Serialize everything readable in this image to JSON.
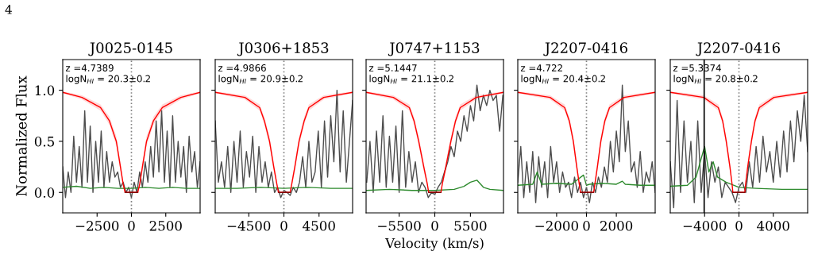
{
  "chart_data": [
    {
      "type": "line",
      "title": "J0025-0145",
      "ylabel": "Normalized Flux",
      "annotations": [
        "z =4.7389",
        "logN$_{HI}$ = 20.3±0.2",
        "4"
      ],
      "xlim": [
        -5000,
        5000
      ],
      "xticks": [
        {
          "value": -2500,
          "label": "−2500"
        },
        0,
        2500
      ],
      "ylim": [
        -0.2,
        1.3
      ],
      "yticks": [
        {
          "value": 0,
          "label": "0.0"
        },
        0.5,
        {
          "value": 1,
          "label": "1.0"
        }
      ],
      "ref_lines": [
        {
          "axis": "x",
          "value": 0,
          "color": "#808080",
          "line_style": "dotted"
        }
      ],
      "series": [
        {
          "color": "#4d4d4d",
          "x": [
            -5000,
            -4800,
            -4600,
            -4400,
            -4200,
            -4000,
            -3800,
            -3600,
            -3400,
            -3200,
            -3000,
            -2800,
            -2600,
            -2400,
            -2200,
            -2000,
            -1800,
            -1600,
            -1400,
            -1200,
            -1000,
            -800,
            -600,
            -400,
            -200,
            0,
            200,
            400,
            600,
            800,
            1000,
            1200,
            1400,
            1600,
            1800,
            2000,
            2200,
            2400,
            2600,
            2800,
            3000,
            3200,
            3400,
            3600,
            3800,
            4000,
            4200,
            4400,
            4600,
            4800,
            5000
          ],
          "values": [
            0.25,
            -0.05,
            0.2,
            0.0,
            0.55,
            0.1,
            0.45,
            0.05,
            0.8,
            0.1,
            0.65,
            0.0,
            0.5,
            0.1,
            0.6,
            0.05,
            0.4,
            0.1,
            0.3,
            0.15,
            0.2,
            0.05,
            0.1,
            0.0,
            0.05,
            -0.05,
            0.1,
            0.0,
            0.2,
            0.05,
            0.3,
            0.1,
            0.45,
            0.15,
            0.7,
            0.2,
            0.8,
            0.1,
            0.6,
            0.05,
            0.75,
            0.1,
            0.5,
            0.15,
            0.45,
            0.0,
            0.55,
            0.2,
            0.4,
            0.05,
            0.3
          ]
        },
        {
          "color": "#2e8b2e",
          "x": [
            -5000,
            -4000,
            -3000,
            -2000,
            -1000,
            0,
            1000,
            2000,
            3000,
            4000,
            5000
          ],
          "values": [
            0.05,
            0.06,
            0.04,
            0.05,
            0.04,
            0.04,
            0.05,
            0.04,
            0.05,
            0.04,
            0.04
          ]
        },
        {
          "color": "#ff0000",
          "x": [
            -5000,
            -3600,
            -2250,
            -1600,
            -1100,
            -800,
            -600,
            -460,
            460,
            600,
            800,
            1100,
            1600,
            2250,
            3600,
            5000
          ],
          "values": [
            0.98,
            0.93,
            0.83,
            0.7,
            0.5,
            0.25,
            0.08,
            0,
            0,
            0.08,
            0.25,
            0.5,
            0.7,
            0.83,
            0.93,
            0.98
          ],
          "lower": [
            0.97,
            0.91,
            0.8,
            0.66,
            0.45,
            0.2,
            0.05,
            0,
            0,
            0.05,
            0.2,
            0.45,
            0.66,
            0.8,
            0.91,
            0.97
          ],
          "upper": [
            0.99,
            0.95,
            0.86,
            0.74,
            0.55,
            0.3,
            0.11,
            0.01,
            0.01,
            0.11,
            0.3,
            0.55,
            0.74,
            0.86,
            0.95,
            0.99
          ]
        },
        {
          "color": "#800000",
          "x": [
            -460,
            460
          ],
          "values": [
            0,
            0
          ]
        }
      ]
    },
    {
      "type": "line",
      "title": "J0306+1853",
      "annotations": [
        "z =4.9866",
        "logN$_{HI}$ = 20.9±0.2"
      ],
      "tick_labels": "x",
      "xlim": [
        -8800,
        8800
      ],
      "xticks": [
        {
          "value": -4500,
          "label": "−4500"
        },
        0,
        4500
      ],
      "ylim": [
        -0.2,
        1.3
      ],
      "yticks": [
        0,
        0.5,
        1
      ],
      "ref_lines": [
        {
          "axis": "x",
          "value": 0,
          "color": "#808080",
          "line_style": "dotted"
        }
      ],
      "series": [
        {
          "color": "#4d4d4d",
          "x": [
            -8800,
            -8400,
            -8000,
            -7600,
            -7200,
            -6800,
            -6400,
            -6000,
            -5600,
            -5200,
            -4800,
            -4400,
            -4000,
            -3600,
            -3200,
            -2800,
            -2400,
            -2000,
            -1600,
            -1200,
            -800,
            -400,
            0,
            400,
            800,
            1200,
            1600,
            2000,
            2400,
            2800,
            3200,
            3600,
            4000,
            4400,
            4800,
            5200,
            5600,
            6000,
            6400,
            6800,
            7200,
            7600,
            8000,
            8400,
            8800
          ],
          "values": [
            0.7,
            0.1,
            0.3,
            0.05,
            0.45,
            0.0,
            0.5,
            0.1,
            0.6,
            0.05,
            0.4,
            0.15,
            0.55,
            0.0,
            0.45,
            0.1,
            0.3,
            0.05,
            0.2,
            0.0,
            0.05,
            -0.05,
            0.02,
            0.0,
            -0.03,
            0.05,
            0.0,
            0.1,
            0.35,
            0.05,
            0.5,
            0.1,
            0.2,
            0.6,
            0.05,
            0.7,
            0.15,
            0.75,
            0.3,
            1.0,
            0.2,
            0.8,
            0.1,
            0.5,
            0.9
          ]
        },
        {
          "color": "#2e8b2e",
          "x": [
            -8800,
            -6000,
            -3000,
            0,
            3000,
            6000,
            8800
          ],
          "values": [
            0.04,
            0.04,
            0.05,
            0.04,
            0.05,
            0.04,
            0.04
          ]
        },
        {
          "color": "#ff0000",
          "x": [
            -8800,
            -5000,
            -3100,
            -2500,
            -1840,
            -1300,
            -900,
            -700,
            800,
            1000,
            1400,
            1940,
            2600,
            3200,
            5100,
            8800
          ],
          "values": [
            0.98,
            0.93,
            0.83,
            0.7,
            0.5,
            0.25,
            0.08,
            0,
            0,
            0.08,
            0.25,
            0.5,
            0.7,
            0.83,
            0.93,
            0.98
          ],
          "lower": [
            0.97,
            0.91,
            0.8,
            0.66,
            0.45,
            0.2,
            0.05,
            0,
            0,
            0.05,
            0.2,
            0.45,
            0.66,
            0.8,
            0.91,
            0.97
          ],
          "upper": [
            0.99,
            0.95,
            0.86,
            0.74,
            0.55,
            0.3,
            0.11,
            0.01,
            0.01,
            0.11,
            0.3,
            0.55,
            0.74,
            0.86,
            0.95,
            0.99
          ]
        },
        {
          "color": "#800000",
          "x": [
            -700,
            800
          ],
          "values": [
            0,
            0
          ]
        }
      ]
    },
    {
      "type": "line",
      "title": "J0747+1153",
      "xlabel": "Velocity (km/s)",
      "annotations": [
        "z =5.1447",
        "logN$_{HI}$ = 21.1±0.2"
      ],
      "tick_labels": "x",
      "xlim": [
        -10600,
        10600
      ],
      "xticks": [
        {
          "value": -5500,
          "label": "−5500"
        },
        0,
        5500
      ],
      "ylim": [
        -0.2,
        1.3
      ],
      "yticks": [
        0,
        0.5,
        1
      ],
      "ref_lines": [
        {
          "axis": "x",
          "value": 0,
          "color": "#808080",
          "line_style": "dotted"
        }
      ],
      "series": [
        {
          "color": "#4d4d4d",
          "x": [
            -10500,
            -10000,
            -9500,
            -9000,
            -8500,
            -8000,
            -7500,
            -7000,
            -6500,
            -6000,
            -5500,
            -5000,
            -4500,
            -4000,
            -3500,
            -3000,
            -2500,
            -2000,
            -1500,
            -1000,
            -500,
            0,
            500,
            1000,
            1500,
            2000,
            2500,
            3000,
            3500,
            4000,
            4500,
            5000,
            5500,
            6000,
            6500,
            7000,
            7500,
            8000,
            8500,
            9000,
            9500,
            10000,
            10500
          ],
          "values": [
            0.1,
            0.5,
            0.0,
            0.6,
            0.1,
            0.75,
            0.05,
            0.55,
            0.1,
            0.65,
            0.0,
            0.8,
            0.05,
            0.4,
            0.1,
            0.3,
            0.0,
            0.1,
            0.05,
            -0.05,
            0.0,
            -0.02,
            0.05,
            0.1,
            0.2,
            0.3,
            0.45,
            0.35,
            0.6,
            0.5,
            0.75,
            0.6,
            0.85,
            0.7,
            1.05,
            0.8,
            0.95,
            0.85,
            1.0,
            0.9,
            0.95,
            0.6,
            0.95
          ]
        },
        {
          "color": "#2e8b2e",
          "x": [
            -10600,
            -7000,
            -3500,
            0,
            3000,
            4500,
            5500,
            6500,
            7500,
            8500,
            10600
          ],
          "values": [
            0.02,
            0.03,
            0.02,
            0.02,
            0.03,
            0.06,
            0.1,
            0.12,
            0.05,
            0.03,
            0.02
          ]
        },
        {
          "color": "#ff0000",
          "x": [
            -10600,
            -6400,
            -3920,
            -3200,
            -2480,
            -1700,
            -1150,
            -940,
            950,
            1150,
            1700,
            2480,
            3200,
            3920,
            6400,
            10600
          ],
          "values": [
            0.98,
            0.93,
            0.83,
            0.7,
            0.5,
            0.25,
            0.08,
            0,
            0,
            0.08,
            0.25,
            0.5,
            0.7,
            0.83,
            0.93,
            0.98
          ],
          "lower": [
            0.97,
            0.91,
            0.8,
            0.66,
            0.45,
            0.2,
            0.05,
            0,
            0,
            0.05,
            0.2,
            0.45,
            0.66,
            0.8,
            0.91,
            0.97
          ],
          "upper": [
            0.99,
            0.95,
            0.86,
            0.74,
            0.55,
            0.3,
            0.11,
            0.01,
            0.01,
            0.11,
            0.3,
            0.55,
            0.74,
            0.86,
            0.95,
            0.99
          ]
        },
        {
          "color": "#800000",
          "x": [
            -940,
            950
          ],
          "values": [
            0,
            0
          ]
        }
      ]
    },
    {
      "type": "line",
      "title": "J2207-0416",
      "annotations": [
        "z =4.722",
        "logN$_{HI}$ = 20.4±0.2"
      ],
      "tick_labels": "x",
      "xlim": [
        -4600,
        4600
      ],
      "xticks": [
        {
          "value": -2000,
          "label": "−2000"
        },
        0,
        2000
      ],
      "ylim": [
        -0.2,
        1.3
      ],
      "yticks": [
        0,
        0.5,
        1
      ],
      "ref_lines": [
        {
          "axis": "x",
          "value": 0,
          "color": "#808080",
          "line_style": "dotted"
        }
      ],
      "series": [
        {
          "color": "#4d4d4d",
          "x": [
            -4600,
            -4400,
            -4200,
            -4000,
            -3800,
            -3600,
            -3400,
            -3200,
            -3000,
            -2800,
            -2600,
            -2400,
            -2200,
            -2000,
            -1800,
            -1600,
            -1400,
            -1200,
            -1000,
            -800,
            -600,
            -400,
            -200,
            0,
            200,
            400,
            600,
            800,
            1000,
            1200,
            1400,
            1600,
            1800,
            2000,
            2200,
            2400,
            2600,
            2800,
            3000,
            3200,
            3400,
            3600,
            3800,
            4000,
            4200,
            4400,
            4600
          ],
          "values": [
            0.1,
            0.45,
            -0.05,
            0.3,
            0.0,
            0.4,
            -0.1,
            0.35,
            0.05,
            0.3,
            -0.05,
            0.45,
            0.1,
            0.3,
            0.0,
            0.2,
            0.05,
            0.1,
            -0.05,
            0.15,
            0.0,
            0.1,
            -0.05,
            0.05,
            -0.1,
            0.1,
            0.0,
            0.15,
            0.05,
            0.25,
            0.1,
            0.5,
            0.2,
            0.6,
            0.3,
            1.05,
            0.4,
            0.7,
            0.2,
            0.3,
            0.05,
            0.4,
            0.0,
            0.2,
            0.1,
            0.3,
            0.0
          ]
        },
        {
          "color": "#2e8b2e",
          "x": [
            -4600,
            -3600,
            -3300,
            -3000,
            -2000,
            -1000,
            -200,
            0,
            200,
            1000,
            2000,
            2400,
            2600,
            3600,
            4600
          ],
          "values": [
            0.07,
            0.08,
            0.2,
            0.08,
            0.09,
            0.08,
            0.17,
            0.07,
            0.08,
            0.09,
            0.08,
            0.11,
            0.08,
            0.07,
            0.07
          ]
        },
        {
          "color": "#ff0000",
          "x": [
            -4600,
            -2440,
            -1460,
            -1150,
            -880,
            -650,
            -480,
            -400,
            480,
            560,
            730,
            960,
            1230,
            1540,
            2520,
            4600
          ],
          "values": [
            0.98,
            0.93,
            0.83,
            0.7,
            0.5,
            0.25,
            0.08,
            0,
            0,
            0.08,
            0.25,
            0.5,
            0.7,
            0.83,
            0.93,
            0.98
          ],
          "lower": [
            0.97,
            0.91,
            0.8,
            0.66,
            0.45,
            0.2,
            0.05,
            0,
            0,
            0.05,
            0.2,
            0.45,
            0.66,
            0.8,
            0.91,
            0.97
          ],
          "upper": [
            0.99,
            0.95,
            0.86,
            0.74,
            0.55,
            0.3,
            0.11,
            0.01,
            0.01,
            0.11,
            0.3,
            0.55,
            0.74,
            0.86,
            0.95,
            0.99
          ]
        },
        {
          "color": "#800000",
          "x": [
            -400,
            480
          ],
          "values": [
            0,
            0
          ]
        }
      ]
    },
    {
      "type": "line",
      "title": "J2207-0416",
      "annotations": [
        "z =5.3374",
        "logN$_{HI}$ = 20.8±0.2"
      ],
      "tick_labels": "x",
      "xlim": [
        -8000,
        8000
      ],
      "xticks": [
        {
          "value": -4000,
          "label": "−4000"
        },
        0,
        4000
      ],
      "ylim": [
        -0.2,
        1.3
      ],
      "yticks": [
        0,
        0.5,
        1
      ],
      "ref_lines": [
        {
          "axis": "x",
          "value": 0,
          "color": "#808080",
          "line_style": "dotted"
        },
        {
          "axis": "x",
          "value": -4050,
          "color": "#000000",
          "line_style": "solid"
        }
      ],
      "series": [
        {
          "color": "#4d4d4d",
          "x": [
            -8000,
            -7600,
            -7200,
            -6800,
            -6400,
            -6000,
            -5600,
            -5200,
            -4800,
            -4400,
            -4000,
            -3600,
            -3200,
            -2800,
            -2400,
            -2000,
            -1600,
            -1200,
            -800,
            -400,
            0,
            400,
            800,
            1200,
            1600,
            2000,
            2400,
            2800,
            3200,
            3600,
            4000,
            4400,
            4800,
            5200,
            5600,
            6000,
            6400,
            6800,
            7200,
            7600,
            8000
          ],
          "values": [
            0.3,
            -0.15,
            0.9,
            0.0,
            0.7,
            0.1,
            0.5,
            -0.1,
            0.7,
            0.0,
            0.4,
            -0.05,
            0.3,
            0.1,
            0.25,
            -0.05,
            0.1,
            0.05,
            0.0,
            -0.1,
            0.05,
            0.1,
            0.0,
            0.3,
            0.05,
            0.45,
            0.1,
            0.55,
            0.2,
            0.4,
            0.1,
            0.5,
            0.15,
            0.6,
            0.2,
            0.7,
            0.3,
            0.8,
            0.5,
            0.95,
            0.4
          ]
        },
        {
          "color": "#2e8b2e",
          "x": [
            -8000,
            -6000,
            -5000,
            -4500,
            -4000,
            -3500,
            -3000,
            -2500,
            -1500,
            0,
            2000,
            5000,
            8000
          ],
          "values": [
            0.06,
            0.07,
            0.15,
            0.3,
            0.45,
            0.2,
            0.3,
            0.15,
            0.1,
            0.05,
            0.04,
            0.03,
            0.03
          ]
        },
        {
          "color": "#ff0000",
          "x": [
            -8000,
            -4100,
            -2400,
            -1900,
            -1480,
            -1050,
            -800,
            -710,
            680,
            770,
            1020,
            1450,
            1870,
            2370,
            4070,
            8000
          ],
          "values": [
            0.98,
            0.93,
            0.83,
            0.7,
            0.5,
            0.25,
            0.08,
            0,
            0,
            0.08,
            0.25,
            0.5,
            0.7,
            0.83,
            0.93,
            0.98
          ],
          "lower": [
            0.97,
            0.91,
            0.8,
            0.66,
            0.45,
            0.2,
            0.05,
            0,
            0,
            0.05,
            0.2,
            0.45,
            0.66,
            0.8,
            0.91,
            0.97
          ],
          "upper": [
            0.99,
            0.95,
            0.86,
            0.74,
            0.55,
            0.3,
            0.11,
            0.01,
            0.01,
            0.11,
            0.3,
            0.55,
            0.74,
            0.86,
            0.95,
            0.99
          ]
        },
        {
          "color": "#800000",
          "x": [
            -710,
            680
          ],
          "values": [
            0,
            0
          ]
        }
      ]
    }
  ]
}
